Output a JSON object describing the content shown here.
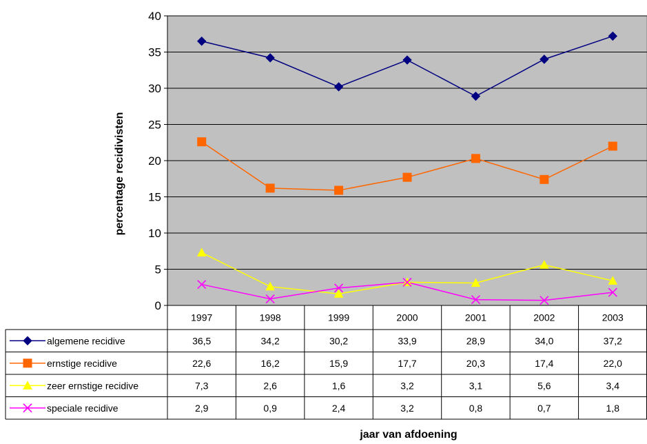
{
  "chart_data": {
    "type": "line",
    "title": "",
    "xlabel": "jaar van afdoening",
    "ylabel": "percentage recidivisten",
    "ylim": [
      0,
      40
    ],
    "yticks": [
      "0",
      "5",
      "10",
      "15",
      "20",
      "25",
      "30",
      "35",
      "40"
    ],
    "grid": true,
    "legend": "data-table-below",
    "categories": [
      "1997",
      "1998",
      "1999",
      "2000",
      "2001",
      "2002",
      "2003"
    ],
    "series": [
      {
        "name": "algemene recidive",
        "values": [
          36.5,
          34.2,
          30.2,
          33.9,
          28.9,
          34.0,
          37.2
        ],
        "labels": [
          "36,5",
          "34,2",
          "30,2",
          "33,9",
          "28,9",
          "34,0",
          "37,2"
        ],
        "color": "#000080",
        "marker": "diamond"
      },
      {
        "name": "ernstige recidive",
        "values": [
          22.6,
          16.2,
          15.9,
          17.7,
          20.3,
          17.4,
          22.0
        ],
        "labels": [
          "22,6",
          "16,2",
          "15,9",
          "17,7",
          "20,3",
          "17,4",
          "22,0"
        ],
        "color": "#FF6600",
        "marker": "square"
      },
      {
        "name": "zeer ernstige recidive",
        "values": [
          7.3,
          2.6,
          1.6,
          3.2,
          3.1,
          5.6,
          3.4
        ],
        "labels": [
          "7,3",
          "2,6",
          "1,6",
          "3,2",
          "3,1",
          "5,6",
          "3,4"
        ],
        "color": "#FFFF00",
        "marker": "triangle"
      },
      {
        "name": "speciale recidive",
        "values": [
          2.9,
          0.9,
          2.4,
          3.2,
          0.8,
          0.7,
          1.8
        ],
        "labels": [
          "2,9",
          "0,9",
          "2,4",
          "3,2",
          "0,8",
          "0,7",
          "1,8"
        ],
        "color": "#FF00FF",
        "marker": "x"
      }
    ],
    "plot_background": "#C0C0C0"
  }
}
